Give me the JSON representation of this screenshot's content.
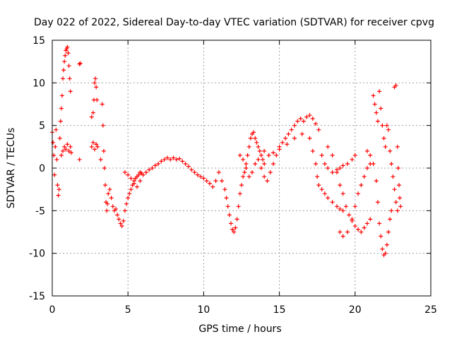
{
  "chart_data": {
    "type": "scatter",
    "title": "Day 022 of 2022, Sidereal Day-to-day VTEC variation (SDTVAR) for receiver cpvg",
    "xlabel": "GPS time / hours",
    "ylabel": "SDTVAR / TECUs",
    "xlim": [
      0,
      25
    ],
    "ylim": [
      -15,
      15
    ],
    "xticks": [
      0,
      5,
      10,
      15,
      20,
      25
    ],
    "yticks": [
      -15,
      -10,
      -5,
      0,
      5,
      10,
      15
    ],
    "xtick_labels": [
      "0",
      "5",
      "10",
      "15",
      "20",
      "25"
    ],
    "ytick_labels": [
      "-15",
      "-10",
      "-5",
      "0",
      "5",
      "10",
      "15"
    ],
    "grid": true,
    "marker": "+",
    "series_color": "#ff0000",
    "series": [
      {
        "name": "SDTVAR",
        "points": [
          [
            0.0,
            4.2
          ],
          [
            0.05,
            3.0
          ],
          [
            0.1,
            1.5
          ],
          [
            0.15,
            -0.8
          ],
          [
            0.2,
            2.5
          ],
          [
            0.25,
            4.5
          ],
          [
            0.3,
            1.0
          ],
          [
            0.35,
            -2.0
          ],
          [
            0.4,
            -3.2
          ],
          [
            0.45,
            -2.5
          ],
          [
            0.5,
            3.5
          ],
          [
            0.55,
            5.5
          ],
          [
            0.6,
            7.0
          ],
          [
            0.65,
            8.5
          ],
          [
            0.7,
            10.5
          ],
          [
            0.75,
            11.5
          ],
          [
            0.8,
            12.5
          ],
          [
            0.85,
            13.2
          ],
          [
            0.9,
            13.8
          ],
          [
            0.95,
            14.0
          ],
          [
            1.0,
            14.2
          ],
          [
            1.05,
            13.5
          ],
          [
            1.1,
            12.0
          ],
          [
            1.15,
            10.5
          ],
          [
            1.2,
            9.0
          ],
          [
            0.6,
            1.5
          ],
          [
            0.7,
            2.0
          ],
          [
            0.8,
            2.5
          ],
          [
            0.9,
            2.2
          ],
          [
            1.0,
            2.8
          ],
          [
            1.1,
            2.0
          ],
          [
            1.2,
            2.5
          ],
          [
            1.25,
            1.8
          ],
          [
            1.8,
            12.2
          ],
          [
            1.85,
            12.3
          ],
          [
            1.8,
            1.0
          ],
          [
            2.6,
            6.0
          ],
          [
            2.7,
            6.5
          ],
          [
            2.75,
            8.0
          ],
          [
            2.8,
            10.0
          ],
          [
            2.85,
            10.5
          ],
          [
            2.9,
            9.5
          ],
          [
            2.95,
            8.0
          ],
          [
            2.6,
            2.5
          ],
          [
            2.7,
            3.0
          ],
          [
            2.8,
            2.2
          ],
          [
            2.9,
            2.8
          ],
          [
            3.0,
            2.5
          ],
          [
            3.2,
            1.0
          ],
          [
            3.3,
            7.5
          ],
          [
            3.35,
            5.0
          ],
          [
            3.4,
            2.0
          ],
          [
            3.45,
            0.0
          ],
          [
            3.5,
            -2.0
          ],
          [
            3.55,
            -4.0
          ],
          [
            3.6,
            -5.0
          ],
          [
            3.65,
            -4.2
          ],
          [
            3.7,
            -3.0
          ],
          [
            3.8,
            -2.5
          ],
          [
            3.9,
            -3.5
          ],
          [
            4.0,
            -4.5
          ],
          [
            4.1,
            -5.0
          ],
          [
            4.2,
            -4.8
          ],
          [
            4.3,
            -5.5
          ],
          [
            4.4,
            -6.0
          ],
          [
            4.5,
            -6.5
          ],
          [
            4.6,
            -6.8
          ],
          [
            4.7,
            -6.2
          ],
          [
            4.8,
            -5.0
          ],
          [
            4.9,
            -4.2
          ],
          [
            5.0,
            -3.5
          ],
          [
            5.1,
            -3.0
          ],
          [
            5.2,
            -2.5
          ],
          [
            5.3,
            -2.0
          ],
          [
            5.4,
            -1.5
          ],
          [
            5.5,
            -1.2
          ],
          [
            5.6,
            -1.0
          ],
          [
            5.7,
            -0.8
          ],
          [
            5.8,
            -0.5
          ],
          [
            5.9,
            -0.6
          ],
          [
            4.8,
            -0.5
          ],
          [
            5.0,
            -0.8
          ],
          [
            5.2,
            -1.2
          ],
          [
            5.4,
            -1.8
          ],
          [
            5.6,
            -2.2
          ],
          [
            5.8,
            -1.5
          ],
          [
            6.0,
            -0.8
          ],
          [
            6.2,
            -0.5
          ],
          [
            6.4,
            -0.2
          ],
          [
            6.6,
            0.0
          ],
          [
            6.8,
            0.3
          ],
          [
            7.0,
            0.5
          ],
          [
            7.2,
            0.8
          ],
          [
            7.4,
            1.0
          ],
          [
            7.6,
            1.2
          ],
          [
            7.8,
            1.0
          ],
          [
            8.0,
            1.2
          ],
          [
            8.2,
            1.0
          ],
          [
            8.4,
            1.1
          ],
          [
            8.6,
            0.8
          ],
          [
            8.8,
            0.5
          ],
          [
            9.0,
            0.2
          ],
          [
            9.2,
            -0.2
          ],
          [
            9.4,
            -0.5
          ],
          [
            9.6,
            -0.8
          ],
          [
            9.8,
            -1.0
          ],
          [
            10.0,
            -1.2
          ],
          [
            10.2,
            -1.5
          ],
          [
            10.4,
            -1.8
          ],
          [
            10.6,
            -2.2
          ],
          [
            10.8,
            -1.5
          ],
          [
            11.0,
            -0.5
          ],
          [
            11.2,
            -1.5
          ],
          [
            11.4,
            -2.5
          ],
          [
            11.5,
            -3.5
          ],
          [
            11.6,
            -4.5
          ],
          [
            11.7,
            -5.5
          ],
          [
            11.8,
            -6.5
          ],
          [
            11.9,
            -7.2
          ],
          [
            12.0,
            -7.5
          ],
          [
            12.1,
            -7.0
          ],
          [
            12.2,
            -6.0
          ],
          [
            12.3,
            -4.5
          ],
          [
            12.4,
            -3.0
          ],
          [
            12.5,
            -2.0
          ],
          [
            12.6,
            -1.0
          ],
          [
            12.7,
            -0.5
          ],
          [
            12.8,
            0.5
          ],
          [
            12.9,
            1.5
          ],
          [
            13.0,
            2.5
          ],
          [
            13.1,
            3.5
          ],
          [
            13.2,
            4.0
          ],
          [
            13.3,
            4.2
          ],
          [
            13.4,
            3.5
          ],
          [
            13.5,
            3.0
          ],
          [
            13.6,
            2.5
          ],
          [
            13.7,
            2.0
          ],
          [
            13.8,
            1.5
          ],
          [
            13.9,
            1.0
          ],
          [
            14.0,
            0.5
          ],
          [
            12.4,
            1.5
          ],
          [
            12.6,
            1.0
          ],
          [
            12.8,
            0.0
          ],
          [
            13.0,
            -1.0
          ],
          [
            13.2,
            -0.5
          ],
          [
            13.4,
            0.5
          ],
          [
            13.6,
            1.0
          ],
          [
            13.8,
            0.0
          ],
          [
            14.0,
            -1.0
          ],
          [
            14.2,
            -1.5
          ],
          [
            14.4,
            -0.5
          ],
          [
            14.6,
            0.5
          ],
          [
            14.8,
            1.5
          ],
          [
            15.0,
            2.5
          ],
          [
            15.2,
            3.0
          ],
          [
            15.4,
            3.5
          ],
          [
            15.6,
            4.0
          ],
          [
            15.8,
            4.5
          ],
          [
            16.0,
            5.0
          ],
          [
            16.2,
            5.5
          ],
          [
            16.4,
            5.8
          ],
          [
            16.6,
            5.5
          ],
          [
            16.8,
            6.0
          ],
          [
            17.0,
            6.2
          ],
          [
            17.2,
            5.8
          ],
          [
            17.4,
            5.2
          ],
          [
            17.6,
            4.5
          ],
          [
            14.0,
            2.0
          ],
          [
            14.3,
            1.5
          ],
          [
            14.6,
            1.8
          ],
          [
            15.0,
            2.2
          ],
          [
            15.5,
            2.8
          ],
          [
            16.0,
            3.5
          ],
          [
            16.5,
            4.0
          ],
          [
            17.0,
            3.5
          ],
          [
            17.2,
            2.0
          ],
          [
            17.4,
            0.5
          ],
          [
            17.5,
            -1.0
          ],
          [
            17.6,
            -2.0
          ],
          [
            17.8,
            -2.5
          ],
          [
            18.0,
            -3.0
          ],
          [
            18.2,
            -3.5
          ],
          [
            18.5,
            -4.0
          ],
          [
            18.8,
            -4.5
          ],
          [
            19.0,
            -4.8
          ],
          [
            19.2,
            -5.0
          ],
          [
            17.8,
            1.5
          ],
          [
            18.0,
            0.5
          ],
          [
            18.2,
            0.0
          ],
          [
            18.5,
            -0.5
          ],
          [
            18.8,
            -0.2
          ],
          [
            19.0,
            0.0
          ],
          [
            19.2,
            0.3
          ],
          [
            19.5,
            0.5
          ],
          [
            19.8,
            1.0
          ],
          [
            20.0,
            1.5
          ],
          [
            18.2,
            2.5
          ],
          [
            18.5,
            1.5
          ],
          [
            18.8,
            -0.5
          ],
          [
            19.0,
            -2.0
          ],
          [
            19.2,
            -3.0
          ],
          [
            19.4,
            -4.5
          ],
          [
            19.6,
            -5.5
          ],
          [
            19.8,
            -6.2
          ],
          [
            20.0,
            -6.8
          ],
          [
            20.2,
            -7.2
          ],
          [
            20.4,
            -7.5
          ],
          [
            20.6,
            -7.0
          ],
          [
            20.8,
            -6.5
          ],
          [
            21.0,
            -6.0
          ],
          [
            19.0,
            -7.5
          ],
          [
            19.2,
            -8.0
          ],
          [
            19.5,
            -7.5
          ],
          [
            19.8,
            -6.0
          ],
          [
            20.0,
            -4.5
          ],
          [
            20.2,
            -3.0
          ],
          [
            20.4,
            -2.0
          ],
          [
            20.6,
            -1.0
          ],
          [
            20.8,
            0.0
          ],
          [
            21.0,
            0.5
          ],
          [
            20.8,
            2.0
          ],
          [
            21.0,
            1.5
          ],
          [
            21.2,
            0.5
          ],
          [
            21.4,
            -1.5
          ],
          [
            21.5,
            -4.0
          ],
          [
            21.6,
            -6.5
          ],
          [
            21.7,
            -8.0
          ],
          [
            21.8,
            -9.5
          ],
          [
            21.9,
            -10.2
          ],
          [
            22.0,
            -10.0
          ],
          [
            22.1,
            -9.0
          ],
          [
            22.2,
            -7.5
          ],
          [
            22.3,
            -6.0
          ],
          [
            22.4,
            -5.0
          ],
          [
            21.2,
            8.5
          ],
          [
            21.3,
            7.5
          ],
          [
            21.4,
            6.5
          ],
          [
            21.5,
            5.5
          ],
          [
            21.6,
            9.0
          ],
          [
            21.7,
            7.0
          ],
          [
            21.8,
            5.0
          ],
          [
            21.9,
            3.5
          ],
          [
            22.0,
            2.5
          ],
          [
            22.1,
            5.0
          ],
          [
            22.2,
            4.5
          ],
          [
            22.3,
            2.0
          ],
          [
            22.4,
            0.5
          ],
          [
            22.5,
            -1.0
          ],
          [
            22.6,
            -2.5
          ],
          [
            22.7,
            -4.0
          ],
          [
            22.8,
            -5.0
          ],
          [
            22.6,
            9.5
          ],
          [
            22.7,
            9.7
          ],
          [
            22.8,
            2.5
          ],
          [
            22.85,
            0.0
          ],
          [
            22.9,
            -2.0
          ],
          [
            22.95,
            -3.5
          ],
          [
            23.0,
            -4.5
          ]
        ]
      }
    ]
  }
}
